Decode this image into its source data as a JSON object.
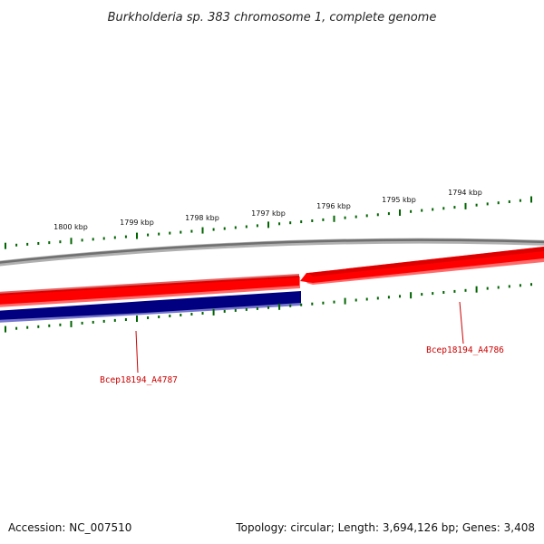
{
  "title": "Burkholderia sp. 383 chromosome 1, complete genome",
  "footer": {
    "accession": "Accession: NC_007510",
    "summary": "Topology: circular; Length: 3,694,126 bp; Genes: 3,408"
  },
  "scale": {
    "labels": [
      "1800 kbp",
      "1799 kbp",
      "1798 kbp",
      "1797 kbp",
      "1796 kbp",
      "1795 kbp",
      "1794 kbp"
    ]
  },
  "genes": [
    {
      "name": "Bcep18194_A4787",
      "strand": "forward",
      "color": "#000080"
    },
    {
      "name": "Bcep18194_A4786",
      "strand": "reverse",
      "color": "#ff0000"
    }
  ],
  "colors": {
    "backbone": "#808080",
    "reverse_gene": "#ff0000",
    "forward_gene": "#000080",
    "ticks": "#006400",
    "labels": "#cc0000"
  }
}
